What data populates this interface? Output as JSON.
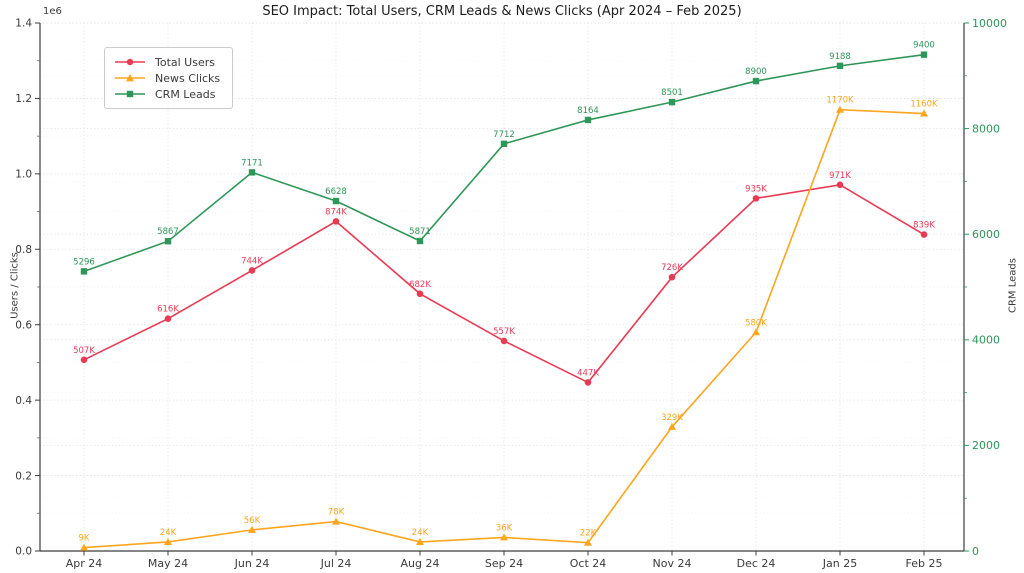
{
  "title": "SEO Impact: Total Users, CRM Leads & News Clicks (Apr 2024 – Feb 2025)",
  "chart_data": {
    "type": "line",
    "categories": [
      "Apr 24",
      "May 24",
      "Jun 24",
      "Jul 24",
      "Aug 24",
      "Sep 24",
      "Oct 24",
      "Nov 24",
      "Dec 24",
      "Jan 25",
      "Feb 25"
    ],
    "series": [
      {
        "name": "Total Users",
        "axis": "left",
        "color": "#e73b54",
        "marker": "circle",
        "values": [
          507000,
          616000,
          744000,
          874000,
          682000,
          557000,
          447000,
          726000,
          935000,
          971000,
          839000
        ],
        "labels": [
          "507K",
          "616K",
          "744K",
          "874K",
          "682K",
          "557K",
          "447K",
          "726K",
          "935K",
          "971K",
          "839K"
        ]
      },
      {
        "name": "News Clicks",
        "axis": "left",
        "color": "#ffa51e",
        "marker": "triangle",
        "values": [
          9000,
          24000,
          56000,
          78000,
          24000,
          36000,
          22000,
          329000,
          580000,
          1170000,
          1160000
        ],
        "labels": [
          "9K",
          "24K",
          "56K",
          "78K",
          "24K",
          "36K",
          "22K",
          "329K",
          "580K",
          "1170K",
          "1160K"
        ]
      },
      {
        "name": "CRM Leads",
        "axis": "right",
        "color": "#2e9658",
        "marker": "square",
        "values": [
          5296,
          5867,
          7171,
          6628,
          5871,
          7712,
          8164,
          8501,
          8900,
          9188,
          9400
        ],
        "labels": [
          "5296",
          "5867",
          "7171",
          "6628",
          "5871",
          "7712",
          "8164",
          "8501",
          "8900",
          "9188",
          "9400"
        ]
      }
    ],
    "left_axis": {
      "label": "Users / Clicks",
      "multiplier": "1e6",
      "ticks": [
        "0.0",
        "0.2",
        "0.4",
        "0.6",
        "0.8",
        "1.0",
        "1.2",
        "1.4"
      ],
      "tick_values": [
        0,
        200000,
        400000,
        600000,
        800000,
        1000000,
        1200000,
        1400000
      ],
      "range": [
        0,
        1400000
      ]
    },
    "right_axis": {
      "label": "CRM Leads",
      "color": "#2e9658",
      "ticks": [
        "0",
        "2000",
        "4000",
        "6000",
        "8000",
        "10000"
      ],
      "tick_values": [
        0,
        2000,
        4000,
        6000,
        8000,
        10000
      ],
      "range": [
        0,
        10000
      ]
    },
    "legend": {
      "position": "upper-left",
      "entries": [
        "Total Users",
        "News Clicks",
        "CRM Leads"
      ]
    },
    "grid": true
  }
}
